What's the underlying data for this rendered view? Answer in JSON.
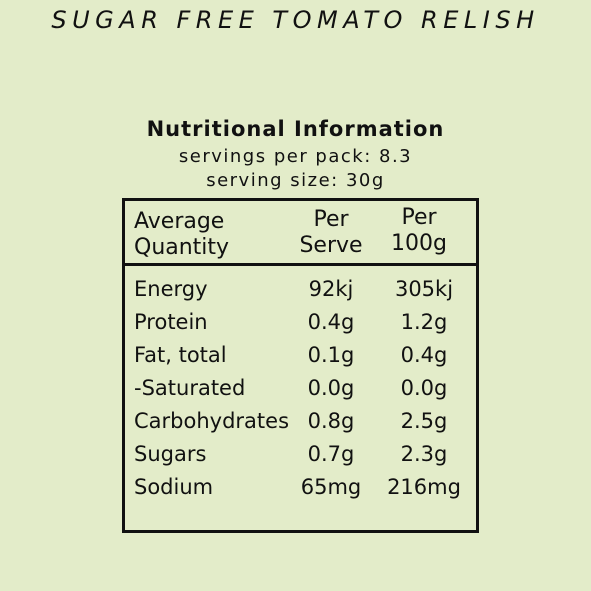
{
  "product": {
    "title": "SUGAR FREE TOMATO RELISH"
  },
  "panel": {
    "heading": "Nutritional Information",
    "servings_per_pack": "servings per pack: 8.3",
    "serving_size": "serving size: 30g",
    "columns": {
      "quantity_line1": "Average",
      "quantity_line2": "Quantity",
      "serve_line1": "Per",
      "serve_line2": "Serve",
      "per100_line1": "Per",
      "per100_line2": "100g"
    },
    "rows": [
      {
        "name": "Energy",
        "serve": "92kj",
        "per100": "305kj"
      },
      {
        "name": "Protein",
        "serve": "0.4g",
        "per100": "1.2g"
      },
      {
        "name": "Fat, total",
        "serve": "0.1g",
        "per100": "0.4g"
      },
      {
        "name": "-Saturated",
        "serve": "0.0g",
        "per100": "0.0g"
      },
      {
        "name": "Carbohydrates",
        "serve": "0.8g",
        "per100": "2.5g"
      },
      {
        "name": "Sugars",
        "serve": "0.7g",
        "per100": "2.3g"
      },
      {
        "name": "Sodium",
        "serve": "65mg",
        "per100": "216mg"
      }
    ]
  },
  "colors": {
    "background": "#e3ecc9",
    "text": "#111111",
    "border": "#111111"
  }
}
